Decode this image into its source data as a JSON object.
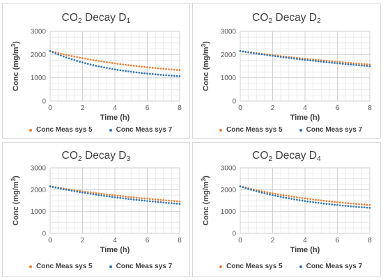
{
  "chart_data": [
    {
      "type": "scatter",
      "title": "CO",
      "title_sub": "2",
      "title_rest": " Decay D",
      "title_index": "1",
      "xlabel": "Time (h)",
      "ylabel": "Conc (mg/m³)",
      "ylabel_sup": "3",
      "xlim": [
        0,
        8
      ],
      "ylim": [
        0,
        3000
      ],
      "xticks": [
        "0",
        "2",
        "4",
        "6",
        "8"
      ],
      "yticks": [
        "0",
        "1000",
        "2000",
        "3000"
      ],
      "grid": true,
      "legend_position": "bottom",
      "series": [
        {
          "name": "Conc Meas sys 5",
          "color": "#ED7D31",
          "start": 2150,
          "end": 1330,
          "curve": 0.55
        },
        {
          "name": "Conc Meas sys 7",
          "color": "#2E75B6",
          "start": 2150,
          "end": 1070,
          "curve": 0.9
        }
      ]
    },
    {
      "type": "scatter",
      "title": "CO",
      "title_sub": "2",
      "title_rest": " Decay D",
      "title_index": "2",
      "xlabel": "Time (h)",
      "ylabel": "Conc (mg/m³)",
      "ylabel_sup": "3",
      "xlim": [
        0,
        8
      ],
      "ylim": [
        0,
        3000
      ],
      "xticks": [
        "0",
        "2",
        "4",
        "6",
        "8"
      ],
      "yticks": [
        "0",
        "1000",
        "2000",
        "3000"
      ],
      "grid": true,
      "legend_position": "bottom",
      "series": [
        {
          "name": "Conc Meas sys 5",
          "color": "#ED7D31",
          "start": 2150,
          "end": 1570,
          "curve": 0.25
        },
        {
          "name": "Conc Meas sys 7",
          "color": "#2E75B6",
          "start": 2150,
          "end": 1500,
          "curve": 0.3
        }
      ]
    },
    {
      "type": "scatter",
      "title": "CO",
      "title_sub": "2",
      "title_rest": " Decay D",
      "title_index": "3",
      "xlabel": "Time (h)",
      "ylabel": "Conc (mg/m³)",
      "ylabel_sup": "3",
      "xlim": [
        0,
        8
      ],
      "ylim": [
        0,
        3000
      ],
      "xticks": [
        "0",
        "2",
        "4",
        "6",
        "8"
      ],
      "yticks": [
        "0",
        "1000",
        "2000",
        "3000"
      ],
      "grid": true,
      "legend_position": "bottom",
      "series": [
        {
          "name": "Conc Meas sys 5",
          "color": "#ED7D31",
          "start": 2150,
          "end": 1460,
          "curve": 0.35
        },
        {
          "name": "Conc Meas sys 7",
          "color": "#2E75B6",
          "start": 2150,
          "end": 1350,
          "curve": 0.45
        }
      ]
    },
    {
      "type": "scatter",
      "title": "CO",
      "title_sub": "2",
      "title_rest": " Decay D",
      "title_index": "4",
      "xlabel": "Time (h)",
      "ylabel": "Conc (mg/m³)",
      "ylabel_sup": "3",
      "xlim": [
        0,
        8
      ],
      "ylim": [
        0,
        3000
      ],
      "xticks": [
        "0",
        "2",
        "4",
        "6",
        "8"
      ],
      "yticks": [
        "0",
        "1000",
        "2000",
        "3000"
      ],
      "grid": true,
      "legend_position": "bottom",
      "series": [
        {
          "name": "Conc Meas sys 5",
          "color": "#ED7D31",
          "start": 2150,
          "end": 1300,
          "curve": 0.55
        },
        {
          "name": "Conc Meas sys 7",
          "color": "#2E75B6",
          "start": 2150,
          "end": 1170,
          "curve": 0.7
        }
      ]
    }
  ]
}
